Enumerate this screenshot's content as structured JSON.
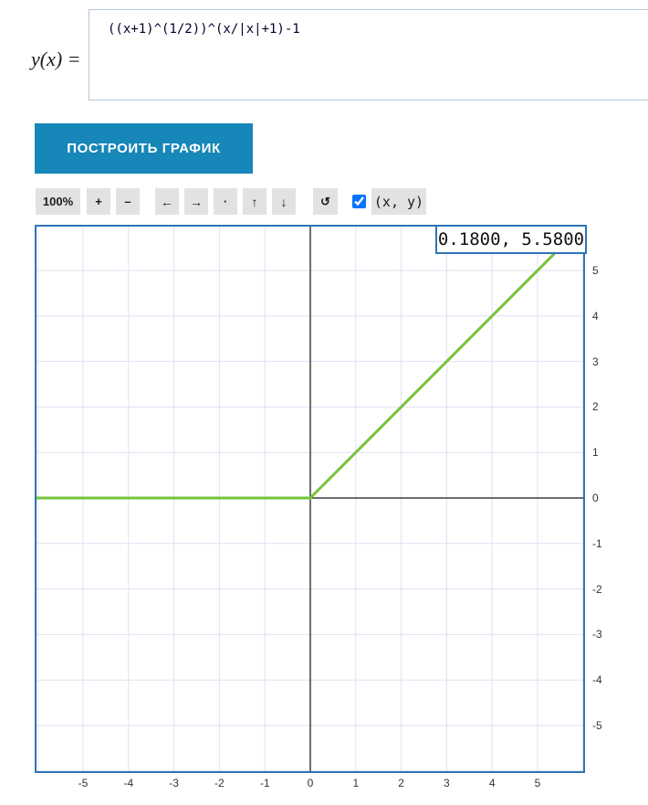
{
  "formula": {
    "label": "y(x) =",
    "value": "((x+1)^(1/2))^(x/|x|+1)-1"
  },
  "plot_button": {
    "label": "ПОСТРОИТЬ ГРАФИК"
  },
  "toolbar": {
    "zoom_level": "100%",
    "zoom_in": "+",
    "zoom_out": "–",
    "pan_left": "←",
    "pan_right": "→",
    "center_dot": "·",
    "pan_up": "↑",
    "pan_down": "↓",
    "reset": "↺",
    "coords_checkbox_checked": true,
    "coords_toggle_label": "(x, y)"
  },
  "graph": {
    "coords_readout": "0.1800, 5.5800"
  },
  "chart_data": {
    "type": "line",
    "title": "",
    "xlabel": "",
    "ylabel": "",
    "grid": true,
    "xlim": [
      -6.05,
      6.0
    ],
    "ylim": [
      -6.0,
      5.98
    ],
    "x_ticks": [
      -5,
      -4,
      -3,
      -2,
      -1,
      0,
      1,
      2,
      3,
      4,
      5
    ],
    "y_ticks": [
      5,
      4,
      3,
      2,
      1,
      0,
      -1,
      -2,
      -3,
      -4,
      -5
    ],
    "series": [
      {
        "name": "y(x) = ((x+1)^(1/2))^(x/|x|+1)-1",
        "color": "#76c43e",
        "points": [
          [
            -6.05,
            0
          ],
          [
            0,
            0
          ],
          [
            6.05,
            6.05
          ]
        ]
      }
    ],
    "cursor_readout": {
      "x": 0.18,
      "y": 5.58
    }
  },
  "colors": {
    "accent_teal": "#1786b8",
    "plot_border": "#2e74b5",
    "grid_line": "#e0e0f4",
    "axis_line": "#3d3d3d",
    "curve_green": "#76c43e",
    "toolbar_button_bg": "#e2e2e2"
  }
}
